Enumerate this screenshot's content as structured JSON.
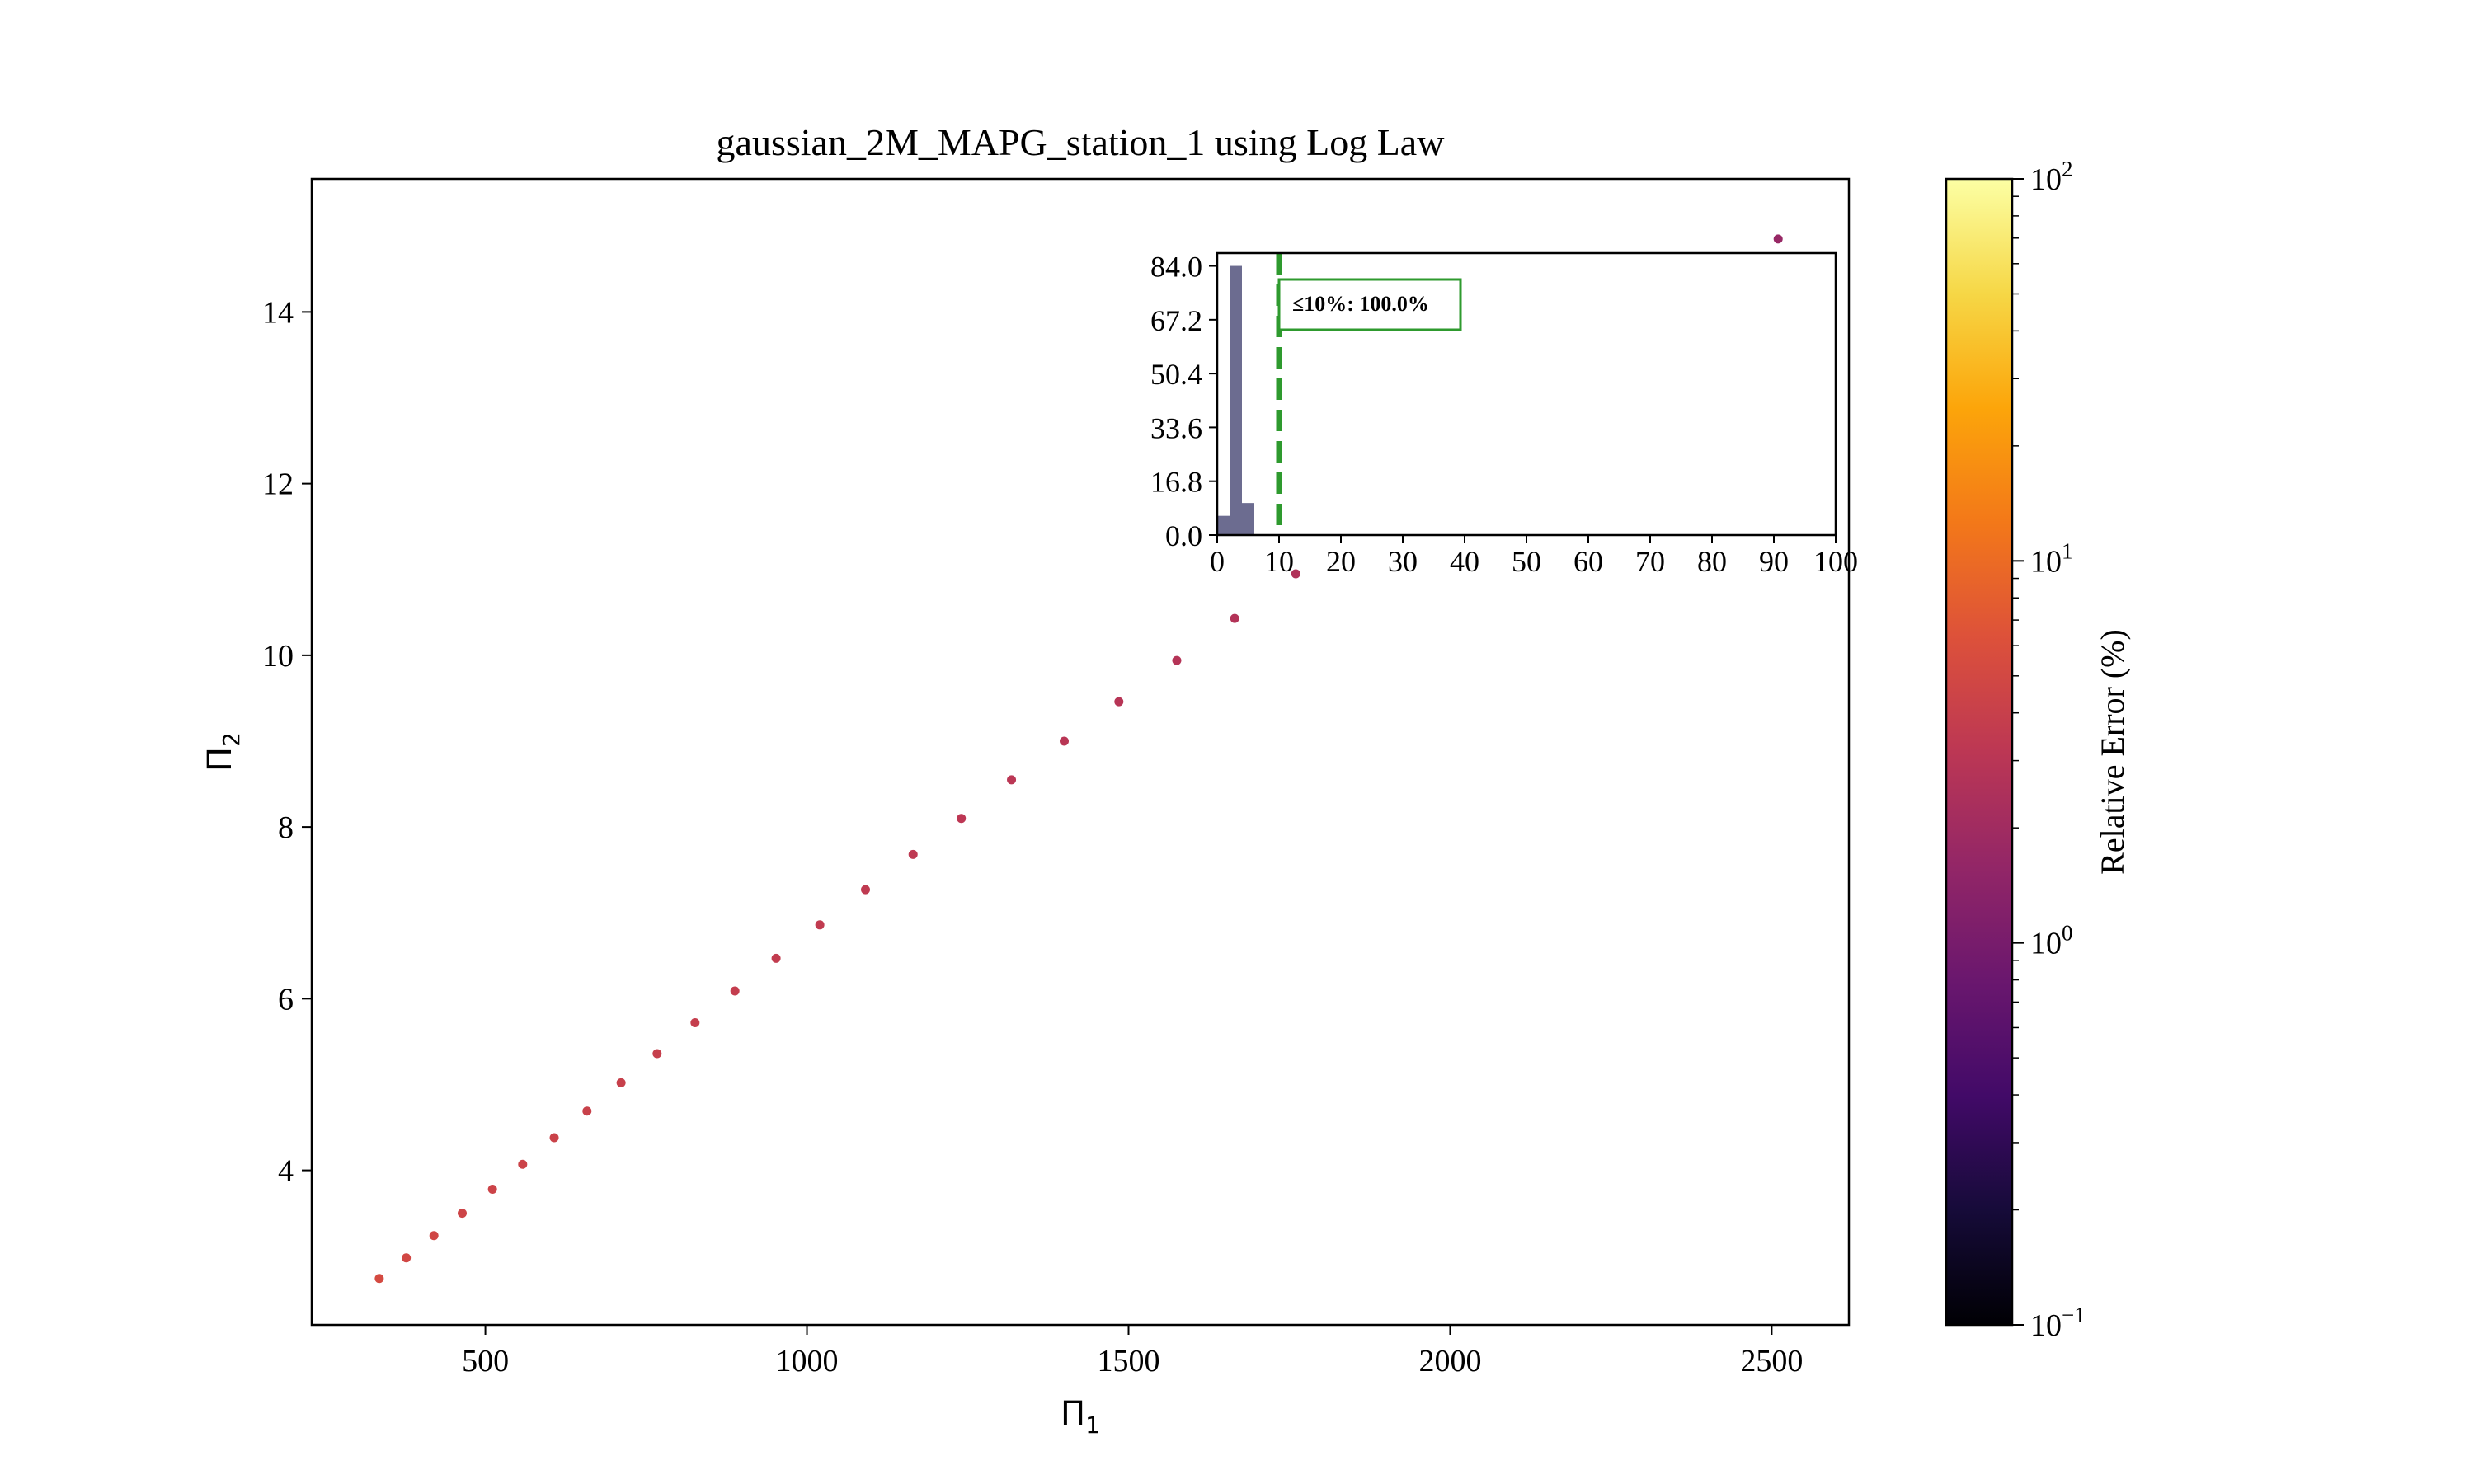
{
  "chart_data": [
    {
      "type": "scatter",
      "title": "gaussian_2M_MAPG_station_1 using Log Law",
      "xlabel": "Π",
      "xlabel_sub": "1",
      "ylabel": "Π",
      "ylabel_sub": "2",
      "xlim": [
        230,
        2620
      ],
      "ylim": [
        2.2,
        15.55
      ],
      "xticks": [
        500,
        1000,
        1500,
        2000,
        2500
      ],
      "yticks": [
        4,
        6,
        8,
        10,
        12,
        14
      ],
      "grid": false,
      "colormap": "inferno",
      "points": [
        {
          "x": 335,
          "y": 2.74,
          "err": 5.2
        },
        {
          "x": 377,
          "y": 2.98,
          "err": 4.9
        },
        {
          "x": 420,
          "y": 3.24,
          "err": 4.7
        },
        {
          "x": 464,
          "y": 3.5,
          "err": 4.5
        },
        {
          "x": 511,
          "y": 3.78,
          "err": 4.4
        },
        {
          "x": 558,
          "y": 4.07,
          "err": 4.3
        },
        {
          "x": 607,
          "y": 4.38,
          "err": 4.2
        },
        {
          "x": 658,
          "y": 4.69,
          "err": 4.1
        },
        {
          "x": 711,
          "y": 5.02,
          "err": 4.0
        },
        {
          "x": 767,
          "y": 5.36,
          "err": 3.9
        },
        {
          "x": 826,
          "y": 5.72,
          "err": 3.8
        },
        {
          "x": 888,
          "y": 6.09,
          "err": 3.7
        },
        {
          "x": 952,
          "y": 6.47,
          "err": 3.6
        },
        {
          "x": 1020,
          "y": 6.86,
          "err": 3.5
        },
        {
          "x": 1091,
          "y": 7.27,
          "err": 3.4
        },
        {
          "x": 1165,
          "y": 7.68,
          "err": 3.3
        },
        {
          "x": 1240,
          "y": 8.1,
          "err": 3.2
        },
        {
          "x": 1318,
          "y": 8.55,
          "err": 3.1
        },
        {
          "x": 1400,
          "y": 9.0,
          "err": 3.0
        },
        {
          "x": 1485,
          "y": 9.46,
          "err": 2.9
        },
        {
          "x": 1575,
          "y": 9.94,
          "err": 2.8
        },
        {
          "x": 1665,
          "y": 10.43,
          "err": 2.7
        },
        {
          "x": 1760,
          "y": 10.95,
          "err": 2.6
        },
        {
          "x": 2510,
          "y": 14.85,
          "err": 1.7
        }
      ],
      "colorbar": {
        "label": "Relative Error (%)",
        "scale": "log",
        "lim": [
          0.1,
          100
        ],
        "ticks": [
          {
            "base": "10",
            "exp": "−1"
          },
          {
            "base": "10",
            "exp": "0"
          },
          {
            "base": "10",
            "exp": "1"
          },
          {
            "base": "10",
            "exp": "2"
          }
        ]
      }
    },
    {
      "type": "bar",
      "role": "inset-histogram",
      "xlim": [
        0,
        100
      ],
      "ylim": [
        0,
        88
      ],
      "xticks": [
        "0",
        "10",
        "20",
        "30",
        "40",
        "50",
        "60",
        "70",
        "80",
        "90",
        "100"
      ],
      "yticks": [
        "0.0",
        "16.8",
        "33.6",
        "50.4",
        "67.2",
        "84.0"
      ],
      "bins": [
        {
          "x0": 0,
          "x1": 2,
          "count": 6
        },
        {
          "x0": 2,
          "x1": 4,
          "count": 84
        },
        {
          "x0": 4,
          "x1": 6,
          "count": 10
        }
      ],
      "threshold": 10,
      "annotation": "≤10%: 100.0%",
      "bar_color": "#3b3b6b",
      "threshold_color": "#2e9a2e"
    }
  ]
}
